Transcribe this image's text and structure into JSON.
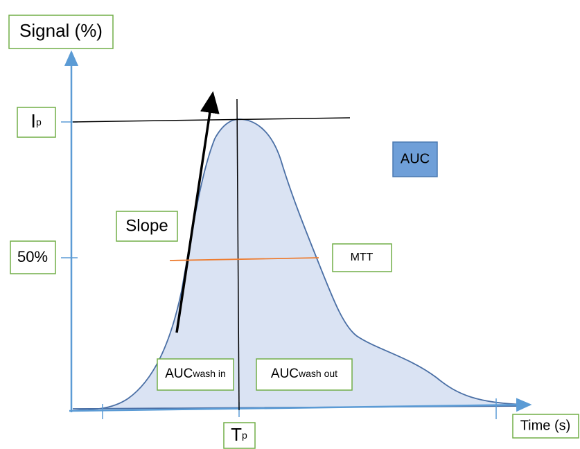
{
  "y_axis_label": "Signal (%)",
  "x_axis_label": "Time (s)",
  "peak_intensity": {
    "main": "I",
    "sub": "p"
  },
  "half_level": "50%",
  "peak_time": {
    "main": "T",
    "sub": "p"
  },
  "slope": "Slope",
  "auc": "AUC",
  "mtt": "MTT",
  "auc_wash_in": {
    "main": "AUC",
    "sub": "wash in"
  },
  "auc_wash_out": {
    "main": "AUC",
    "sub": "wash out"
  }
}
